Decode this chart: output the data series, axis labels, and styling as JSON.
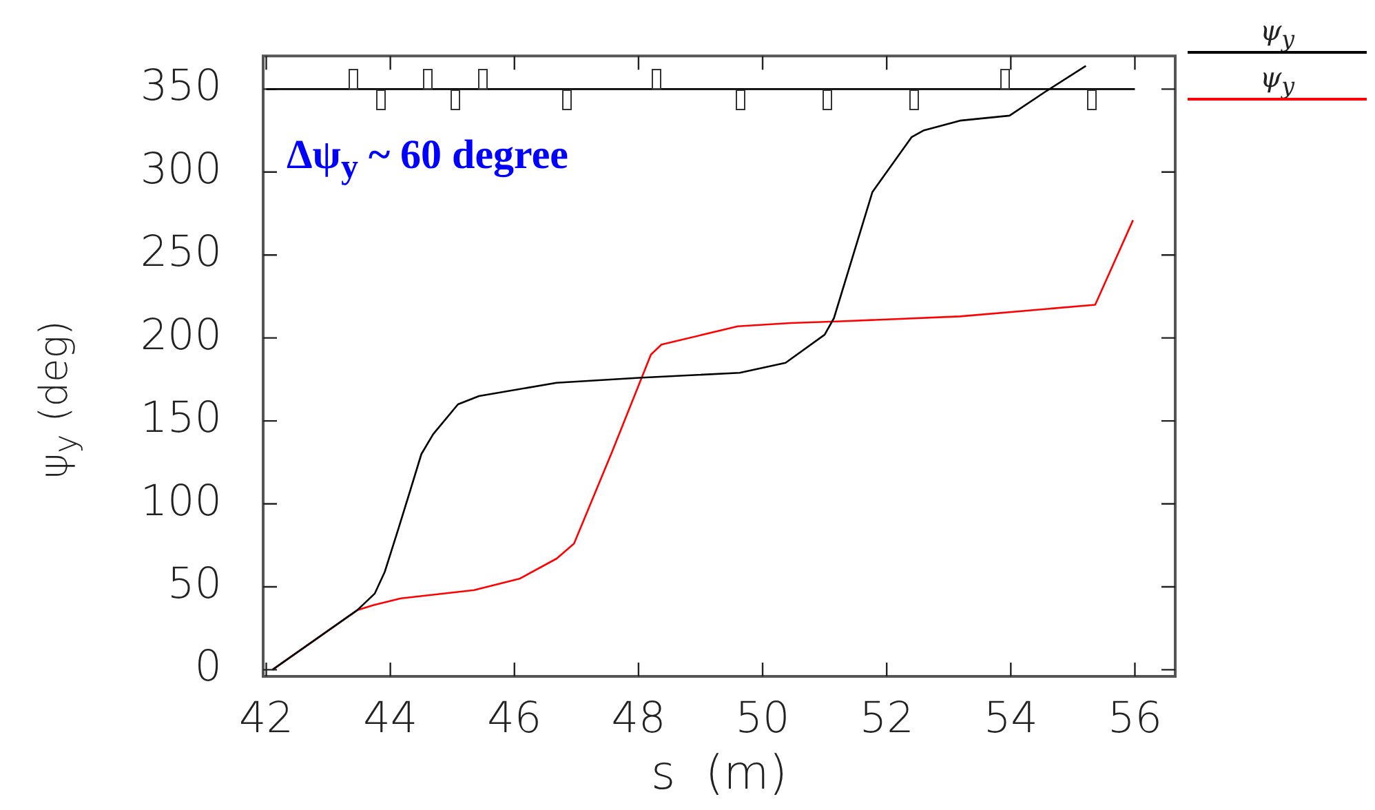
{
  "chart_data": {
    "type": "line",
    "xlabel": "s  (m)",
    "ylabel": "ψ$_{y}$ (deg)",
    "annotations": [
      "Δψ$_{y}$ ~ 60 degree"
    ],
    "xlim": [
      41.95,
      56.65
    ],
    "xticks": [
      42,
      44,
      46,
      48,
      50,
      52,
      54,
      56
    ],
    "ylim": [
      -4,
      370
    ],
    "yticks": [
      0,
      50,
      100,
      150,
      200,
      250,
      300,
      350
    ],
    "ref_lines": [
      {
        "axis": "y",
        "value": 350,
        "color": "#000000"
      }
    ],
    "grid": false,
    "legend": "right",
    "marker": "none",
    "series": [
      {
        "name": "ψ$_{y}$",
        "color": "#000000",
        "x": [
          42.1,
          43.47,
          43.75,
          43.91,
          44.13,
          44.32,
          44.5,
          44.69,
          45.09,
          45.43,
          46.68,
          48.01,
          49.63,
          50.37,
          51.0,
          51.15,
          51.77,
          52.4,
          52.59,
          53.18,
          53.98,
          54.58,
          55.21
        ],
        "values": [
          0,
          36,
          46,
          59,
          85,
          108,
          130,
          142,
          160,
          165,
          173,
          176,
          179,
          185,
          202,
          212,
          288,
          321,
          325,
          331,
          334,
          349,
          364
        ]
      },
      {
        "name": "ψ$_{y}$",
        "color": "#ff0000",
        "x": [
          42.1,
          43.47,
          43.73,
          44.17,
          45.35,
          46.09,
          46.68,
          46.96,
          47.57,
          48.2,
          48.37,
          49.6,
          50.45,
          51.26,
          53.18,
          55.36,
          55.97
        ],
        "values": [
          0,
          36,
          39,
          43,
          48,
          55,
          67,
          76,
          131,
          190,
          196,
          207,
          209,
          210,
          213,
          220,
          271
        ]
      }
    ]
  }
}
